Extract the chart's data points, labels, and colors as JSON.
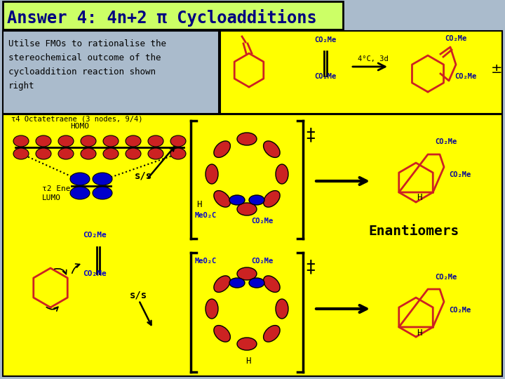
{
  "title": "Answer 4: 4n+2 π Cycloadditions",
  "title_bg": "#ccff66",
  "title_color": "#000080",
  "main_bg": "#aabbcc",
  "yellow_bg": "#ffff00",
  "body_text_color": "black",
  "psi4_label": "τ4 Octatetraene (3 nodes, 9/4)",
  "homo_label": "HOMO",
  "psi2_label": "τ2 Ene\nLUMO",
  "ss_label": "s/s",
  "enantiomers_label": "Enantiomers",
  "condition_label": "4°C, 3d",
  "red_color": "#cc2222",
  "blue_color": "#0000cc",
  "dark_blue": "#000099"
}
